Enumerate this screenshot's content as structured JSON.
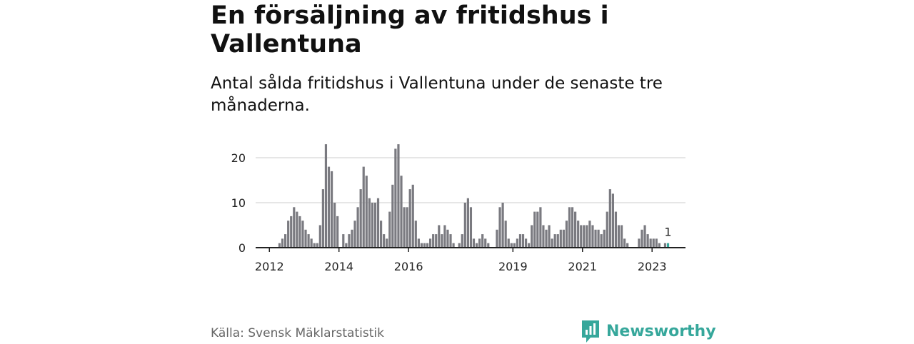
{
  "title": "En försäljning av fritidshus i Vallentuna",
  "subtitle": "Antal sålda fritidshus i Vallentuna under de senaste tre månaderna.",
  "source": "Källa: Svensk Mäklarstatistik",
  "brand": "Newsworthy",
  "colors": {
    "bar": "#7a7a80",
    "highlight": "#36a79b",
    "brand": "#36a79b",
    "grid": "#dddddd",
    "axis": "#222222"
  },
  "chart_data": {
    "type": "bar",
    "x_axis_type": "monthly time series",
    "start": "2011-08",
    "ylim": [
      0,
      25
    ],
    "yticks": [
      0,
      10,
      20
    ],
    "xtick_labels": [
      "2012",
      "2014",
      "2016",
      "2019",
      "2021",
      "2023"
    ],
    "grid": true,
    "highlight_last": true,
    "annotation": "1",
    "values": [
      0,
      0,
      0,
      0,
      0,
      0,
      0,
      0,
      1,
      2,
      3,
      6,
      7,
      9,
      8,
      7,
      6,
      4,
      3,
      2,
      1,
      1,
      5,
      13,
      23,
      18,
      17,
      10,
      7,
      0,
      3,
      1,
      3,
      4,
      6,
      9,
      13,
      18,
      16,
      11,
      10,
      10,
      11,
      6,
      3,
      2,
      8,
      14,
      22,
      23,
      16,
      9,
      9,
      13,
      14,
      6,
      2,
      1,
      1,
      1,
      2,
      3,
      3,
      5,
      3,
      5,
      4,
      3,
      1,
      0,
      1,
      3,
      10,
      11,
      9,
      2,
      1,
      2,
      3,
      2,
      1,
      0,
      0,
      4,
      9,
      10,
      6,
      2,
      1,
      1,
      2,
      3,
      3,
      2,
      1,
      5,
      8,
      8,
      9,
      5,
      4,
      5,
      2,
      3,
      3,
      4,
      4,
      6,
      9,
      9,
      8,
      6,
      5,
      5,
      5,
      6,
      5,
      4,
      4,
      3,
      4,
      8,
      13,
      12,
      8,
      5,
      5,
      2,
      1,
      0,
      0,
      0,
      2,
      4,
      5,
      3,
      2,
      2,
      2,
      1,
      0,
      1,
      1,
      0
    ]
  }
}
